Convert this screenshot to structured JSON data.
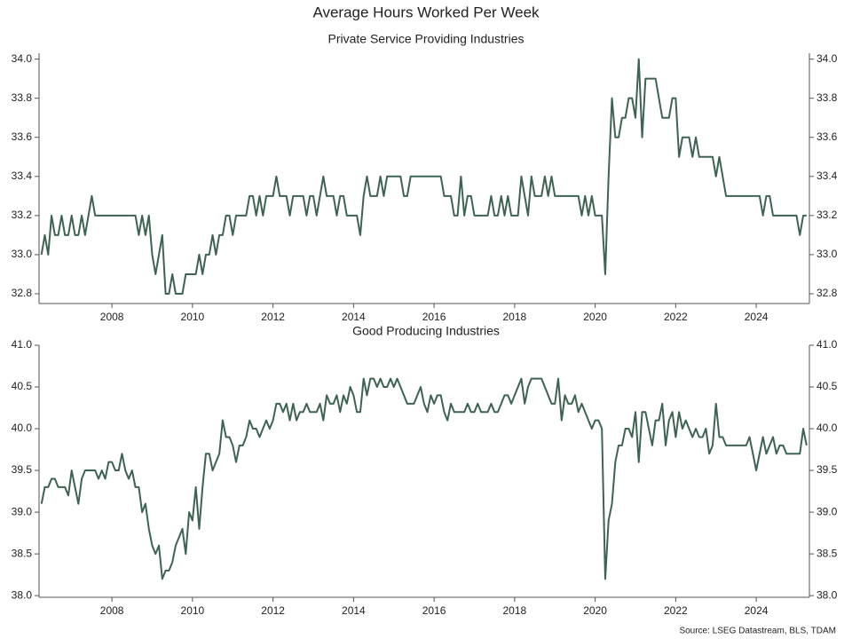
{
  "title": "Average Hours Worked Per Week",
  "source": "Source: LSEG Datastream, BLS, TDAM",
  "chart_data": [
    {
      "type": "line",
      "title": "Private Service Providing Industries",
      "x": [
        2006.25,
        2006.333,
        2006.417,
        2006.5,
        2006.583,
        2006.667,
        2006.75,
        2006.833,
        2006.917,
        2007,
        2007.083,
        2007.167,
        2007.25,
        2007.333,
        2007.417,
        2007.5,
        2007.583,
        2007.667,
        2007.75,
        2007.833,
        2007.917,
        2008,
        2008.083,
        2008.167,
        2008.25,
        2008.333,
        2008.417,
        2008.5,
        2008.583,
        2008.667,
        2008.75,
        2008.833,
        2008.917,
        2009,
        2009.083,
        2009.167,
        2009.25,
        2009.333,
        2009.417,
        2009.5,
        2009.583,
        2009.667,
        2009.75,
        2009.833,
        2009.917,
        2010,
        2010.083,
        2010.167,
        2010.25,
        2010.333,
        2010.417,
        2010.5,
        2010.583,
        2010.667,
        2010.75,
        2010.833,
        2010.917,
        2011,
        2011.083,
        2011.167,
        2011.25,
        2011.333,
        2011.417,
        2011.5,
        2011.583,
        2011.667,
        2011.75,
        2011.833,
        2011.917,
        2012,
        2012.083,
        2012.167,
        2012.25,
        2012.333,
        2012.417,
        2012.5,
        2012.583,
        2012.667,
        2012.75,
        2012.833,
        2012.917,
        2013,
        2013.083,
        2013.167,
        2013.25,
        2013.333,
        2013.417,
        2013.5,
        2013.583,
        2013.667,
        2013.75,
        2013.833,
        2013.917,
        2014,
        2014.083,
        2014.167,
        2014.25,
        2014.333,
        2014.417,
        2014.5,
        2014.583,
        2014.667,
        2014.75,
        2014.833,
        2014.917,
        2015,
        2015.083,
        2015.167,
        2015.25,
        2015.333,
        2015.417,
        2015.5,
        2015.583,
        2015.667,
        2015.75,
        2015.833,
        2015.917,
        2016,
        2016.083,
        2016.167,
        2016.25,
        2016.333,
        2016.417,
        2016.5,
        2016.583,
        2016.667,
        2016.75,
        2016.833,
        2016.917,
        2017,
        2017.083,
        2017.167,
        2017.25,
        2017.333,
        2017.417,
        2017.5,
        2017.583,
        2017.667,
        2017.75,
        2017.833,
        2017.917,
        2018,
        2018.083,
        2018.167,
        2018.25,
        2018.333,
        2018.417,
        2018.5,
        2018.583,
        2018.667,
        2018.75,
        2018.833,
        2018.917,
        2019,
        2019.083,
        2019.167,
        2019.25,
        2019.333,
        2019.417,
        2019.5,
        2019.583,
        2019.667,
        2019.75,
        2019.833,
        2019.917,
        2020,
        2020.083,
        2020.167,
        2020.25,
        2020.333,
        2020.417,
        2020.5,
        2020.583,
        2020.667,
        2020.75,
        2020.833,
        2020.917,
        2021,
        2021.083,
        2021.167,
        2021.25,
        2021.333,
        2021.417,
        2021.5,
        2021.583,
        2021.667,
        2021.75,
        2021.833,
        2021.917,
        2022,
        2022.083,
        2022.167,
        2022.25,
        2022.333,
        2022.417,
        2022.5,
        2022.583,
        2022.667,
        2022.75,
        2022.833,
        2022.917,
        2023,
        2023.083,
        2023.167,
        2023.25,
        2023.333,
        2023.417,
        2023.5,
        2023.583,
        2023.667,
        2023.75,
        2023.833,
        2023.917,
        2024,
        2024.083,
        2024.167,
        2024.25,
        2024.333,
        2024.417,
        2024.5,
        2024.583,
        2024.667,
        2024.75,
        2024.833,
        2024.917,
        2025,
        2025.083,
        2025.167,
        2025.25
      ],
      "series": [
        {
          "color": "#3d6352",
          "values": [
            33.0,
            33.1,
            33.0,
            33.2,
            33.1,
            33.1,
            33.2,
            33.1,
            33.1,
            33.2,
            33.1,
            33.1,
            33.2,
            33.1,
            33.2,
            33.3,
            33.2,
            33.2,
            33.2,
            33.2,
            33.2,
            33.2,
            33.2,
            33.2,
            33.2,
            33.2,
            33.2,
            33.2,
            33.2,
            33.1,
            33.2,
            33.1,
            33.2,
            33.0,
            32.9,
            33.0,
            33.1,
            32.8,
            32.8,
            32.9,
            32.8,
            32.8,
            32.8,
            32.9,
            32.9,
            32.9,
            32.9,
            33.0,
            32.9,
            33.0,
            33.0,
            33.1,
            33.0,
            33.1,
            33.1,
            33.2,
            33.2,
            33.1,
            33.2,
            33.2,
            33.2,
            33.2,
            33.3,
            33.3,
            33.2,
            33.3,
            33.2,
            33.3,
            33.3,
            33.3,
            33.4,
            33.3,
            33.3,
            33.3,
            33.2,
            33.3,
            33.3,
            33.3,
            33.3,
            33.2,
            33.3,
            33.3,
            33.2,
            33.3,
            33.4,
            33.3,
            33.3,
            33.3,
            33.2,
            33.3,
            33.3,
            33.2,
            33.2,
            33.2,
            33.2,
            33.1,
            33.3,
            33.4,
            33.3,
            33.3,
            33.3,
            33.4,
            33.3,
            33.4,
            33.4,
            33.4,
            33.4,
            33.4,
            33.3,
            33.3,
            33.4,
            33.4,
            33.4,
            33.4,
            33.4,
            33.4,
            33.4,
            33.4,
            33.4,
            33.4,
            33.3,
            33.3,
            33.3,
            33.2,
            33.2,
            33.4,
            33.2,
            33.3,
            33.3,
            33.2,
            33.2,
            33.2,
            33.2,
            33.2,
            33.3,
            33.2,
            33.2,
            33.3,
            33.2,
            33.3,
            33.2,
            33.2,
            33.2,
            33.4,
            33.3,
            33.2,
            33.4,
            33.3,
            33.3,
            33.3,
            33.4,
            33.3,
            33.4,
            33.3,
            33.3,
            33.3,
            33.3,
            33.3,
            33.3,
            33.3,
            33.3,
            33.2,
            33.3,
            33.2,
            33.3,
            33.2,
            33.2,
            33.2,
            32.9,
            33.4,
            33.8,
            33.6,
            33.6,
            33.7,
            33.7,
            33.8,
            33.8,
            33.7,
            34.0,
            33.6,
            33.9,
            33.9,
            33.9,
            33.9,
            33.8,
            33.7,
            33.7,
            33.7,
            33.8,
            33.8,
            33.5,
            33.6,
            33.6,
            33.6,
            33.5,
            33.6,
            33.5,
            33.5,
            33.5,
            33.5,
            33.5,
            33.4,
            33.5,
            33.4,
            33.3,
            33.3,
            33.3,
            33.3,
            33.3,
            33.3,
            33.3,
            33.3,
            33.3,
            33.3,
            33.3,
            33.2,
            33.3,
            33.3,
            33.2,
            33.2,
            33.2,
            33.2,
            33.2,
            33.2,
            33.2,
            33.2,
            33.1,
            33.2,
            33.2
          ]
        }
      ],
      "xlim": [
        2006.19,
        2025.32
      ],
      "xticks": [
        2008,
        2010,
        2012,
        2014,
        2016,
        2018,
        2020,
        2022,
        2024
      ],
      "ylim": [
        32.75,
        34.03
      ],
      "yticks": [
        32.8,
        {
          "value": 33,
          "label": "33.0"
        },
        33.2,
        33.4,
        33.6,
        33.8,
        {
          "value": 34,
          "label": "34.0"
        }
      ]
    },
    {
      "type": "line",
      "title": "Good Producing Industries",
      "x": [
        2006.25,
        2006.333,
        2006.417,
        2006.5,
        2006.583,
        2006.667,
        2006.75,
        2006.833,
        2006.917,
        2007,
        2007.083,
        2007.167,
        2007.25,
        2007.333,
        2007.417,
        2007.5,
        2007.583,
        2007.667,
        2007.75,
        2007.833,
        2007.917,
        2008,
        2008.083,
        2008.167,
        2008.25,
        2008.333,
        2008.417,
        2008.5,
        2008.583,
        2008.667,
        2008.75,
        2008.833,
        2008.917,
        2009,
        2009.083,
        2009.167,
        2009.25,
        2009.333,
        2009.417,
        2009.5,
        2009.583,
        2009.667,
        2009.75,
        2009.833,
        2009.917,
        2010,
        2010.083,
        2010.167,
        2010.25,
        2010.333,
        2010.417,
        2010.5,
        2010.583,
        2010.667,
        2010.75,
        2010.833,
        2010.917,
        2011,
        2011.083,
        2011.167,
        2011.25,
        2011.333,
        2011.417,
        2011.5,
        2011.583,
        2011.667,
        2011.75,
        2011.833,
        2011.917,
        2012,
        2012.083,
        2012.167,
        2012.25,
        2012.333,
        2012.417,
        2012.5,
        2012.583,
        2012.667,
        2012.75,
        2012.833,
        2012.917,
        2013,
        2013.083,
        2013.167,
        2013.25,
        2013.333,
        2013.417,
        2013.5,
        2013.583,
        2013.667,
        2013.75,
        2013.833,
        2013.917,
        2014,
        2014.083,
        2014.167,
        2014.25,
        2014.333,
        2014.417,
        2014.5,
        2014.583,
        2014.667,
        2014.75,
        2014.833,
        2014.917,
        2015,
        2015.083,
        2015.167,
        2015.25,
        2015.333,
        2015.417,
        2015.5,
        2015.583,
        2015.667,
        2015.75,
        2015.833,
        2015.917,
        2016,
        2016.083,
        2016.167,
        2016.25,
        2016.333,
        2016.417,
        2016.5,
        2016.583,
        2016.667,
        2016.75,
        2016.833,
        2016.917,
        2017,
        2017.083,
        2017.167,
        2017.25,
        2017.333,
        2017.417,
        2017.5,
        2017.583,
        2017.667,
        2017.75,
        2017.833,
        2017.917,
        2018,
        2018.083,
        2018.167,
        2018.25,
        2018.333,
        2018.417,
        2018.5,
        2018.583,
        2018.667,
        2018.75,
        2018.833,
        2018.917,
        2019,
        2019.083,
        2019.167,
        2019.25,
        2019.333,
        2019.417,
        2019.5,
        2019.583,
        2019.667,
        2019.75,
        2019.833,
        2019.917,
        2020,
        2020.083,
        2020.167,
        2020.25,
        2020.333,
        2020.417,
        2020.5,
        2020.583,
        2020.667,
        2020.75,
        2020.833,
        2020.917,
        2021,
        2021.083,
        2021.167,
        2021.25,
        2021.333,
        2021.417,
        2021.5,
        2021.583,
        2021.667,
        2021.75,
        2021.833,
        2021.917,
        2022,
        2022.083,
        2022.167,
        2022.25,
        2022.333,
        2022.417,
        2022.5,
        2022.583,
        2022.667,
        2022.75,
        2022.833,
        2022.917,
        2023,
        2023.083,
        2023.167,
        2023.25,
        2023.333,
        2023.417,
        2023.5,
        2023.583,
        2023.667,
        2023.75,
        2023.833,
        2023.917,
        2024,
        2024.083,
        2024.167,
        2024.25,
        2024.333,
        2024.417,
        2024.5,
        2024.583,
        2024.667,
        2024.75,
        2024.833,
        2024.917,
        2025,
        2025.083,
        2025.167,
        2025.25
      ],
      "series": [
        {
          "color": "#3d6352",
          "values": [
            39.1,
            39.3,
            39.3,
            39.4,
            39.4,
            39.3,
            39.3,
            39.3,
            39.2,
            39.5,
            39.3,
            39.1,
            39.4,
            39.5,
            39.5,
            39.5,
            39.5,
            39.4,
            39.5,
            39.4,
            39.6,
            39.6,
            39.5,
            39.5,
            39.7,
            39.5,
            39.4,
            39.5,
            39.3,
            39.3,
            39.0,
            39.1,
            38.8,
            38.6,
            38.5,
            38.6,
            38.2,
            38.3,
            38.3,
            38.4,
            38.6,
            38.7,
            38.8,
            38.5,
            39.0,
            38.9,
            39.3,
            38.8,
            39.3,
            39.7,
            39.7,
            39.5,
            39.6,
            39.7,
            40.1,
            39.9,
            39.9,
            39.8,
            39.6,
            39.8,
            39.8,
            39.9,
            40.1,
            40.0,
            40.0,
            39.9,
            40.0,
            40.1,
            40.0,
            40.1,
            40.3,
            40.3,
            40.2,
            40.3,
            40.1,
            40.3,
            40.1,
            40.2,
            40.2,
            40.3,
            40.2,
            40.2,
            40.2,
            40.3,
            40.1,
            40.4,
            40.3,
            40.3,
            40.4,
            40.2,
            40.4,
            40.3,
            40.5,
            40.4,
            40.2,
            40.2,
            40.6,
            40.4,
            40.6,
            40.6,
            40.5,
            40.6,
            40.5,
            40.5,
            40.6,
            40.5,
            40.6,
            40.5,
            40.4,
            40.3,
            40.3,
            40.3,
            40.4,
            40.5,
            40.3,
            40.2,
            40.4,
            40.3,
            40.4,
            40.4,
            40.2,
            40.1,
            40.3,
            40.2,
            40.2,
            40.2,
            40.2,
            40.3,
            40.2,
            40.2,
            40.3,
            40.2,
            40.2,
            40.2,
            40.3,
            40.2,
            40.2,
            40.3,
            40.4,
            40.4,
            40.3,
            40.4,
            40.5,
            40.6,
            40.3,
            40.5,
            40.6,
            40.6,
            40.6,
            40.6,
            40.5,
            40.4,
            40.3,
            40.3,
            40.6,
            40.1,
            40.4,
            40.3,
            40.3,
            40.4,
            40.2,
            40.3,
            40.2,
            40.1,
            40.0,
            40.1,
            40.1,
            40.0,
            38.2,
            38.9,
            39.1,
            39.6,
            39.8,
            39.8,
            40.0,
            40.0,
            39.9,
            40.2,
            39.6,
            40.2,
            40.2,
            40.0,
            39.8,
            40.1,
            40.1,
            40.3,
            39.8,
            40.1,
            40.2,
            39.9,
            40.2,
            40.0,
            40.1,
            40.0,
            39.9,
            40.0,
            39.9,
            39.9,
            40.0,
            39.7,
            39.8,
            40.3,
            39.9,
            39.9,
            39.8,
            39.8,
            39.8,
            39.8,
            39.8,
            39.8,
            39.8,
            39.9,
            39.7,
            39.5,
            39.7,
            39.9,
            39.7,
            39.8,
            39.9,
            39.7,
            39.8,
            39.8,
            39.7,
            39.7,
            39.7,
            39.7,
            39.7,
            40.0,
            39.8
          ]
        }
      ],
      "xlim": [
        2006.19,
        2025.32
      ],
      "xticks": [
        2008,
        2010,
        2012,
        2014,
        2016,
        2018,
        2020,
        2022,
        2024
      ],
      "ylim": [
        37.98,
        41.0
      ],
      "yticks": [
        {
          "value": 38,
          "label": "38.0"
        },
        38.5,
        {
          "value": 39,
          "label": "39.0"
        },
        39.5,
        {
          "value": 40,
          "label": "40.0"
        },
        40.5,
        {
          "value": 41,
          "label": "41.0"
        }
      ]
    }
  ]
}
